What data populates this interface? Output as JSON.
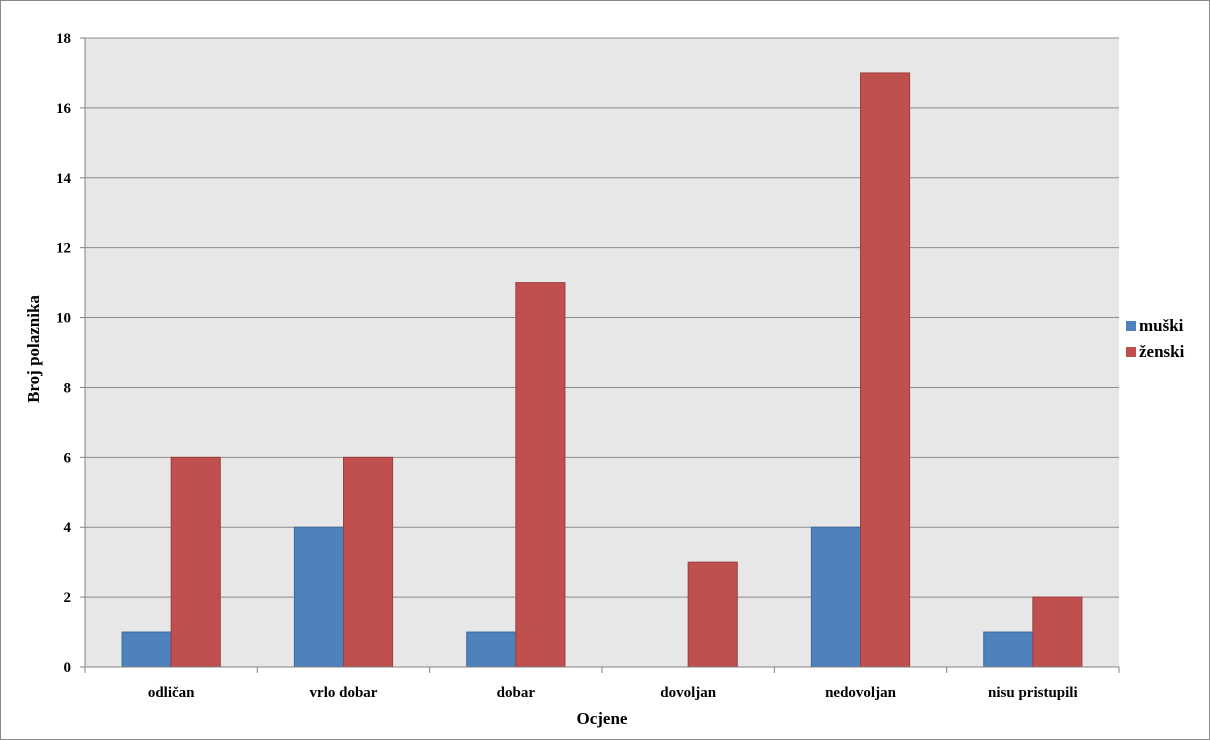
{
  "chart_data": {
    "type": "bar",
    "categories": [
      "odličan",
      "vrlo dobar",
      "dobar",
      "dovoljan",
      "nedovoljan",
      "nisu pristupili"
    ],
    "series": [
      {
        "name": "muški",
        "values": [
          1,
          4,
          1,
          0,
          4,
          1
        ],
        "color": "#4f81bd"
      },
      {
        "name": "ženski",
        "values": [
          6,
          6,
          11,
          3,
          17,
          2
        ],
        "color": "#c0504d"
      }
    ],
    "xlabel": "Ocjene",
    "ylabel": "Broj polaznika",
    "ylim": [
      0,
      18
    ],
    "yticks": [
      0,
      2,
      4,
      6,
      8,
      10,
      12,
      14,
      16,
      18
    ],
    "grid": true,
    "legend_position": "right",
    "plot_background": "#e7e7e7"
  }
}
